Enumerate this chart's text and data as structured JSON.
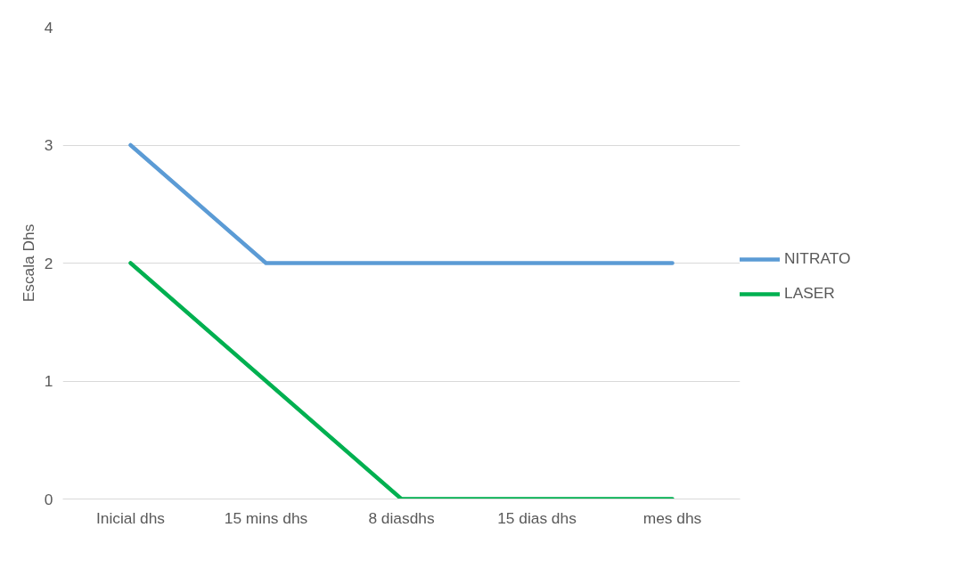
{
  "chart_data": {
    "type": "line",
    "ylabel": "Escala Dhs",
    "categories": [
      "Inicial dhs",
      "15 mins dhs",
      "8 diasdhs",
      "15 dias dhs",
      "mes dhs"
    ],
    "series": [
      {
        "name": "NITRATO",
        "color": "#5b9bd5",
        "values": [
          3,
          2,
          2,
          2,
          2
        ]
      },
      {
        "name": "LASER",
        "color": "#00b050",
        "values": [
          2,
          1,
          0,
          0,
          0
        ]
      }
    ],
    "ylim": [
      0,
      4
    ],
    "yticks": [
      0,
      1,
      2,
      3,
      4
    ],
    "grid": "y",
    "legend": "right",
    "marker": "none",
    "line_style": "solid"
  }
}
